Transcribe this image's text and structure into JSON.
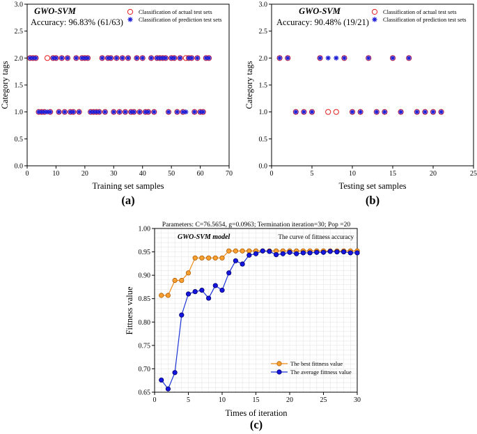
{
  "panels": {
    "a": {
      "panel_label": "(a)",
      "title": "GWO-SVM",
      "accuracy": "Accuracy: 96.83% (61/63)",
      "legend": {
        "actual": "Classification of actual test sets",
        "predicted": "Classification of prediction test sets"
      }
    },
    "b": {
      "panel_label": "(b)",
      "title": "GWO-SVM",
      "accuracy": "Accuracy: 90.48% (19/21)",
      "legend": {
        "actual": "Classification of actual test sets",
        "predicted": "Classification of prediction test sets"
      }
    },
    "c": {
      "panel_label": "(c)",
      "title": "Parameters: C=76.5654, g=0.0963; Termination iteration=30; Pop =20",
      "model_label": "GWO-SVM model",
      "curve_label": "The curve of fittness accuracy"
    }
  },
  "colors": {
    "actual": "#e41a1c",
    "predicted": "#1f1fd6",
    "best": "#f28a1a",
    "average": "#1a33d6",
    "best_dot": "#f7a030",
    "average_dot": "#1515e0",
    "grid": "#e6e6e6",
    "axis": "#000000"
  },
  "chart_data": [
    {
      "id": "a",
      "type": "scatter",
      "title": "GWO-SVM",
      "xlabel": "Training set samples",
      "ylabel": "Category tags",
      "xlim": [
        0,
        70
      ],
      "ylim": [
        0,
        3
      ],
      "xticks": [
        0,
        10,
        20,
        30,
        40,
        50,
        60,
        70
      ],
      "yticks": [
        0.0,
        0.5,
        1.0,
        1.5,
        2.0,
        2.5,
        3.0
      ],
      "series": [
        {
          "name": "Classification of actual test sets",
          "marker": "circle",
          "x": [
            1,
            2,
            3,
            4,
            5,
            6,
            7,
            8,
            9,
            10,
            11,
            12,
            13,
            14,
            15,
            16,
            17,
            18,
            19,
            20,
            21,
            22,
            23,
            24,
            25,
            26,
            27,
            28,
            29,
            30,
            31,
            32,
            33,
            34,
            35,
            36,
            37,
            38,
            39,
            40,
            41,
            42,
            43,
            44,
            45,
            46,
            47,
            48,
            49,
            50,
            51,
            52,
            53,
            54,
            55,
            56,
            57,
            58,
            59,
            60,
            61,
            62,
            63
          ],
          "y": [
            2,
            2,
            2,
            1,
            1,
            1,
            2,
            1,
            2,
            2,
            1,
            2,
            1,
            2,
            1,
            1,
            2,
            1,
            2,
            2,
            2,
            1,
            1,
            1,
            1,
            2,
            1,
            2,
            2,
            1,
            2,
            1,
            2,
            1,
            2,
            1,
            1,
            2,
            1,
            2,
            1,
            1,
            2,
            1,
            2,
            2,
            2,
            2,
            1,
            2,
            2,
            1,
            2,
            1,
            2,
            2,
            2,
            1,
            2,
            1,
            1,
            2,
            2
          ]
        },
        {
          "name": "Classification of prediction test sets",
          "marker": "asterisk",
          "x": [
            1,
            2,
            3,
            4,
            5,
            6,
            7,
            8,
            9,
            10,
            11,
            12,
            13,
            14,
            15,
            16,
            17,
            18,
            19,
            20,
            21,
            22,
            23,
            24,
            25,
            26,
            27,
            28,
            29,
            30,
            31,
            32,
            33,
            34,
            35,
            36,
            37,
            38,
            39,
            40,
            41,
            42,
            43,
            44,
            45,
            46,
            47,
            48,
            49,
            50,
            51,
            52,
            53,
            54,
            55,
            56,
            57,
            58,
            59,
            60,
            61,
            62,
            63
          ],
          "y": [
            2,
            2,
            2,
            1,
            1,
            1,
            1,
            1,
            2,
            2,
            1,
            2,
            1,
            2,
            1,
            1,
            2,
            1,
            2,
            2,
            2,
            1,
            1,
            1,
            1,
            2,
            1,
            2,
            2,
            1,
            2,
            1,
            2,
            1,
            2,
            1,
            1,
            2,
            1,
            2,
            1,
            1,
            2,
            1,
            2,
            2,
            2,
            2,
            1,
            2,
            2,
            1,
            2,
            1,
            1,
            2,
            2,
            1,
            2,
            1,
            1,
            2,
            2
          ]
        }
      ]
    },
    {
      "id": "b",
      "type": "scatter",
      "title": "GWO-SVM",
      "xlabel": "Testing set samples",
      "ylabel": "Category tags",
      "xlim": [
        0,
        25
      ],
      "ylim": [
        0,
        3
      ],
      "xticks": [
        0,
        5,
        10,
        15,
        20,
        25
      ],
      "yticks": [
        0.0,
        0.5,
        1.0,
        1.5,
        2.0,
        2.5,
        3.0
      ],
      "series": [
        {
          "name": "Classification of actual test sets",
          "marker": "circle",
          "x": [
            1,
            2,
            3,
            4,
            5,
            6,
            7,
            8,
            9,
            10,
            11,
            12,
            13,
            14,
            15,
            16,
            17,
            18,
            19,
            20,
            21
          ],
          "y": [
            2,
            2,
            1,
            1,
            1,
            2,
            1,
            1,
            2,
            1,
            1,
            2,
            1,
            1,
            2,
            1,
            2,
            1,
            1,
            1,
            1
          ]
        },
        {
          "name": "Classification of prediction test sets",
          "marker": "asterisk",
          "x": [
            1,
            2,
            3,
            4,
            5,
            6,
            7,
            8,
            9,
            10,
            11,
            12,
            13,
            14,
            15,
            16,
            17,
            18,
            19,
            20,
            21
          ],
          "y": [
            2,
            2,
            1,
            1,
            1,
            2,
            2,
            2,
            2,
            1,
            1,
            2,
            1,
            1,
            2,
            1,
            2,
            1,
            1,
            1,
            1
          ]
        }
      ]
    },
    {
      "id": "c",
      "type": "line",
      "title": "Parameters: C=76.5654, g=0.0963; Termination iteration=30; Pop =20",
      "xlabel": "Times of iteration",
      "ylabel": "Fittness value",
      "xlim": [
        0,
        30
      ],
      "ylim": [
        0.65,
        1.0
      ],
      "xticks": [
        0,
        5,
        10,
        15,
        20,
        25,
        30
      ],
      "yticks": [
        0.65,
        0.7,
        0.75,
        0.8,
        0.85,
        0.9,
        0.95,
        1.0
      ],
      "grid": true,
      "legend_position": "bottom-right",
      "x": [
        1,
        2,
        3,
        4,
        5,
        6,
        7,
        8,
        9,
        10,
        11,
        12,
        13,
        14,
        15,
        16,
        17,
        18,
        19,
        20,
        21,
        22,
        23,
        24,
        25,
        26,
        27,
        28,
        29,
        30
      ],
      "series": [
        {
          "name": "The best fittness value",
          "values": [
            0.857,
            0.857,
            0.889,
            0.889,
            0.905,
            0.937,
            0.937,
            0.937,
            0.937,
            0.937,
            0.952,
            0.952,
            0.952,
            0.952,
            0.952,
            0.952,
            0.952,
            0.952,
            0.952,
            0.952,
            0.952,
            0.952,
            0.952,
            0.952,
            0.952,
            0.952,
            0.952,
            0.952,
            0.952,
            0.952
          ]
        },
        {
          "name": "The average fittness value",
          "values": [
            0.676,
            0.657,
            0.692,
            0.815,
            0.86,
            0.865,
            0.868,
            0.851,
            0.878,
            0.868,
            0.905,
            0.931,
            0.924,
            0.943,
            0.946,
            0.952,
            0.951,
            0.944,
            0.946,
            0.949,
            0.946,
            0.948,
            0.948,
            0.949,
            0.949,
            0.951,
            0.95,
            0.95,
            0.948,
            0.948
          ]
        }
      ]
    }
  ]
}
